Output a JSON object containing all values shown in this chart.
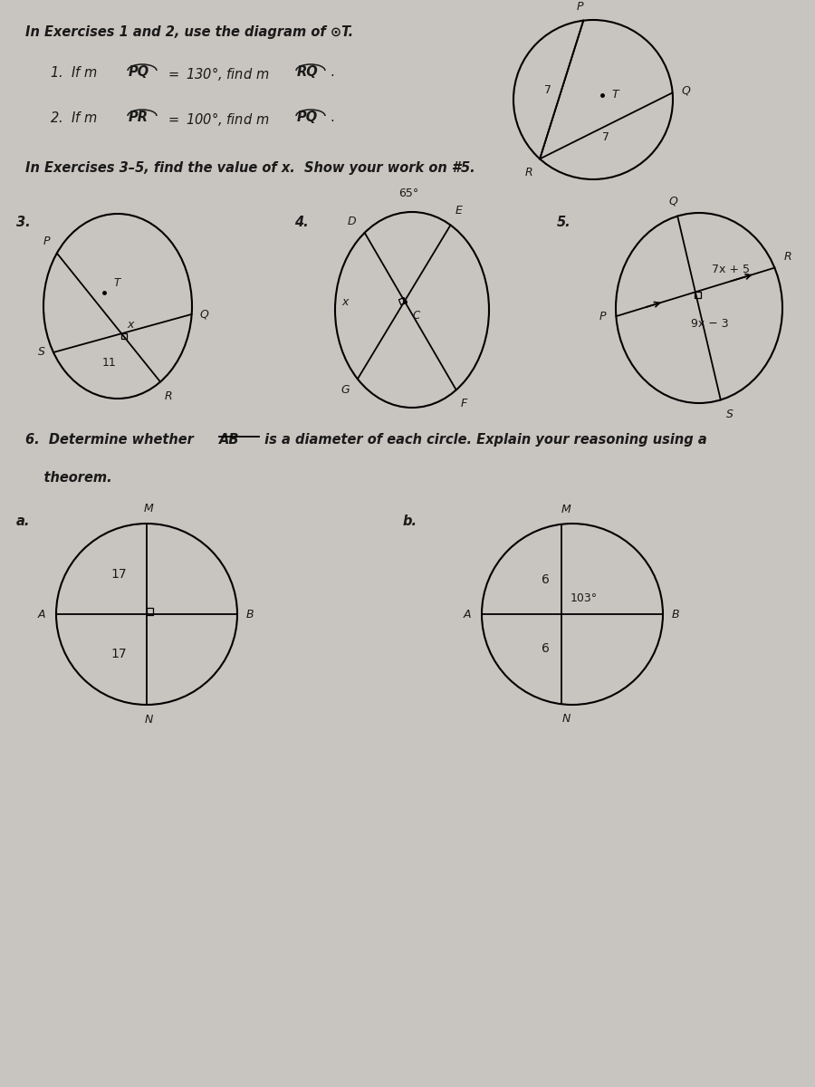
{
  "bg_color": "#c8c4bf",
  "paper_color": "#e8e4df",
  "text_color": "#1a1a1a",
  "line_color": "#1a1a1a",
  "title1": "In Exercises 1 and 2, use the diagram of ⊙T.",
  "title2": "In Exercises 3–5, find the value of x.  Show your work on #5.",
  "title3_part1": "6.  Determine whether ",
  "title3_AB": "AB",
  "title3_part2": " is a diameter of each circle. Explain your reasoning using a",
  "title3_part3": "    theorem."
}
